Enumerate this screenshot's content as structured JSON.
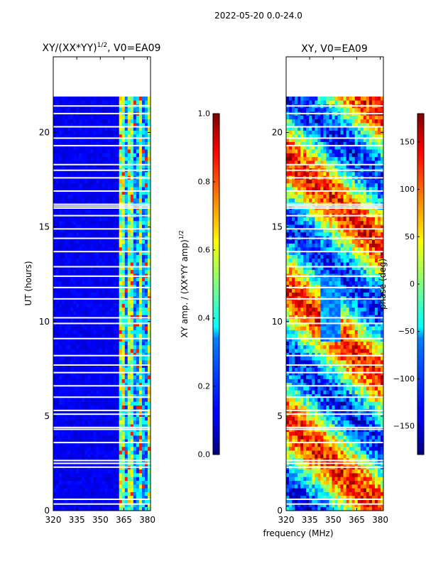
{
  "figure": {
    "suptitle": "2022-05-20 0.0-24.0",
    "shared_xlabel": "frequency (MHz)"
  },
  "chart_data": [
    {
      "type": "heatmap",
      "title": "XY/(XX*YY)",
      "title_exponent": "1/2",
      "title_suffix": ", V0=EA09",
      "xlabel": "",
      "ylabel": "UT (hours)",
      "xlim": [
        320,
        382
      ],
      "ylim": [
        0,
        24
      ],
      "xticks": [
        "320",
        "335",
        "350",
        "365",
        "380"
      ],
      "xtick_values": [
        320,
        335,
        350,
        365,
        380
      ],
      "yticks": [
        "0",
        "5",
        "10",
        "15",
        "20"
      ],
      "ytick_values": [
        0,
        5,
        10,
        15,
        20
      ],
      "data_time_range": [
        0.0,
        21.9
      ],
      "colorbar": {
        "label": "XY amp. / (XX*YY amp)",
        "label_exponent": "1/2",
        "range": [
          0.0,
          1.0
        ],
        "ticks": [
          "0.0",
          "0.2",
          "0.4",
          "0.6",
          "0.8",
          "1.0"
        ],
        "tick_values": [
          0.0,
          0.2,
          0.4,
          0.6,
          0.8,
          1.0
        ]
      }
    },
    {
      "type": "heatmap",
      "title": "XY, V0=EA09",
      "xlabel": "frequency (MHz)",
      "ylabel": "",
      "xlim": [
        320,
        382
      ],
      "ylim": [
        0,
        24
      ],
      "xticks": [
        "320",
        "335",
        "350",
        "365",
        "380"
      ],
      "xtick_values": [
        320,
        335,
        350,
        365,
        380
      ],
      "yticks": [
        "0",
        "5",
        "10",
        "15",
        "20"
      ],
      "ytick_values": [
        0,
        5,
        10,
        15,
        20
      ],
      "data_time_range": [
        0.0,
        21.9
      ],
      "colorbar": {
        "label": "phase (deg)",
        "range": [
          -180,
          180
        ],
        "ticks": [
          "−150",
          "−100",
          "−50",
          "0",
          "50",
          "100",
          "150"
        ],
        "tick_values": [
          -150,
          -100,
          -50,
          0,
          50,
          100,
          150
        ]
      }
    }
  ]
}
